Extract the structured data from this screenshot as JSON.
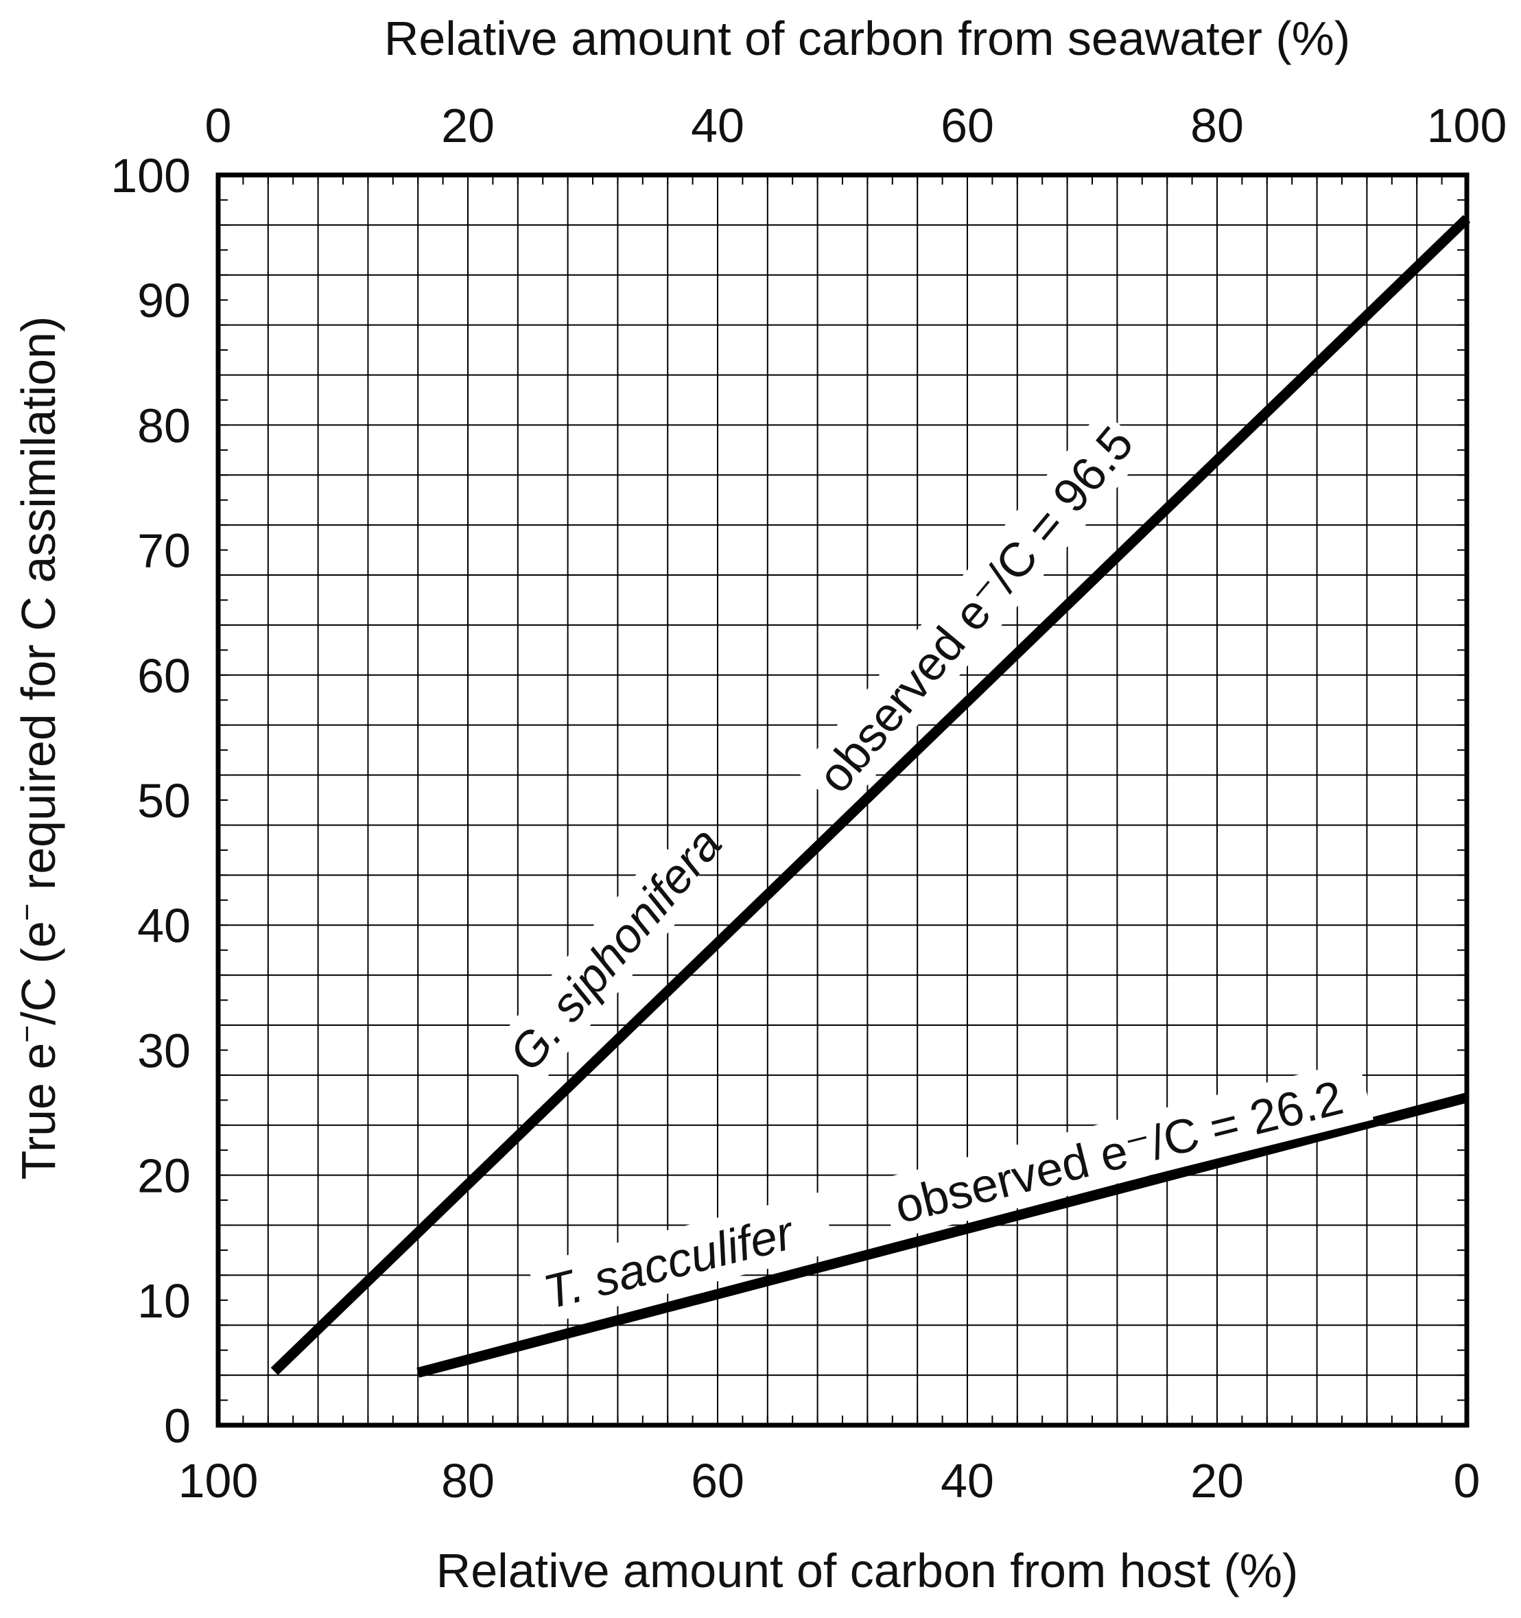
{
  "chart_data": {
    "type": "line",
    "x_bottom_label": "Relative amount of carbon from host (%)",
    "x_top_label": "Relative amount of carbon from seawater (%)",
    "y_label_parts": [
      "True  e",
      "−",
      "/C   (e",
      "−",
      " required for C assimilation)"
    ],
    "x_bottom_ticks": [
      "100",
      "80",
      "60",
      "40",
      "20",
      "0"
    ],
    "x_top_ticks": [
      "0",
      "20",
      "40",
      "60",
      "80",
      "100"
    ],
    "y_ticks": [
      "0",
      "10",
      "20",
      "30",
      "40",
      "50",
      "60",
      "70",
      "80",
      "90",
      "100"
    ],
    "x_top_range": [
      0,
      100
    ],
    "x_bottom_range": [
      100,
      0
    ],
    "y_range": [
      0,
      100
    ],
    "grid": true,
    "series": [
      {
        "name": "G. siphonifera",
        "annotation": "observed e⁻/C = 96.5",
        "x_seawater": [
          4.5,
          100
        ],
        "y": [
          4.3,
          96.5
        ]
      },
      {
        "name": "T. sacculifer",
        "annotation": "observed e⁻/C = 26.2",
        "x_seawater": [
          16,
          100
        ],
        "y": [
          4.2,
          26.2
        ]
      }
    ]
  }
}
